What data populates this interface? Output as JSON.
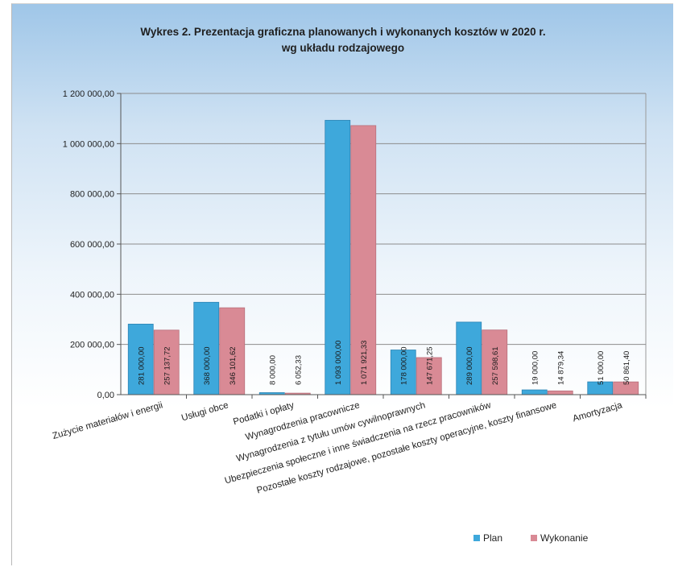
{
  "chart_data": {
    "type": "bar",
    "title": [
      "Wykres 2. Prezentacja graficzna planowanych i wykonanych kosztów w 2020 r.",
      "wg układu rodzajowego"
    ],
    "categories": [
      "Zużycie materiałów i energii",
      "Usługi obce",
      "Podatki i opłaty",
      "Wynagrodzenia pracownicze",
      "Wynagrodzenia z tytułu umów cywilnoprawnych",
      "Ubezpieczenia społeczne i inne świadczenia na rzecz pracowników",
      "Pozostałe koszty rodzajowe, pozostałe koszty operacyjne, koszty finansowe",
      "Amortyzacja"
    ],
    "series": [
      {
        "name": "Plan",
        "color": "#3ea8db",
        "values": [
          281000.0,
          368000.0,
          8000.0,
          1093000.0,
          178000.0,
          289000.0,
          19000.0,
          51000.0
        ],
        "labels": [
          "281 000,00",
          "368 000,00",
          "8 000,00",
          "1 093 000,00",
          "178 000,00",
          "289 000,00",
          "19 000,00",
          "51 000,00"
        ]
      },
      {
        "name": "Wykonanie",
        "color": "#d98a95",
        "values": [
          257137.72,
          346101.62,
          6052.33,
          1071921.33,
          147671.25,
          257598.61,
          14879.34,
          50861.4
        ],
        "labels": [
          "257 137,72",
          "346 101,62",
          "6 052,33",
          "1 071 921,33",
          "147 671,25",
          "257 598,61",
          "14 879,34",
          "50 861,40"
        ]
      }
    ],
    "ylim": [
      0,
      1200000
    ],
    "yticks": [
      0,
      200000,
      400000,
      600000,
      800000,
      1000000,
      1200000
    ],
    "ytick_labels": [
      "0,00",
      "200 000,00",
      "400 000,00",
      "600 000,00",
      "800 000,00",
      "1 000 000,00",
      "1 200 000,00"
    ],
    "xlabel": "",
    "ylabel": "",
    "grid": true,
    "legend": "bottom-right"
  }
}
